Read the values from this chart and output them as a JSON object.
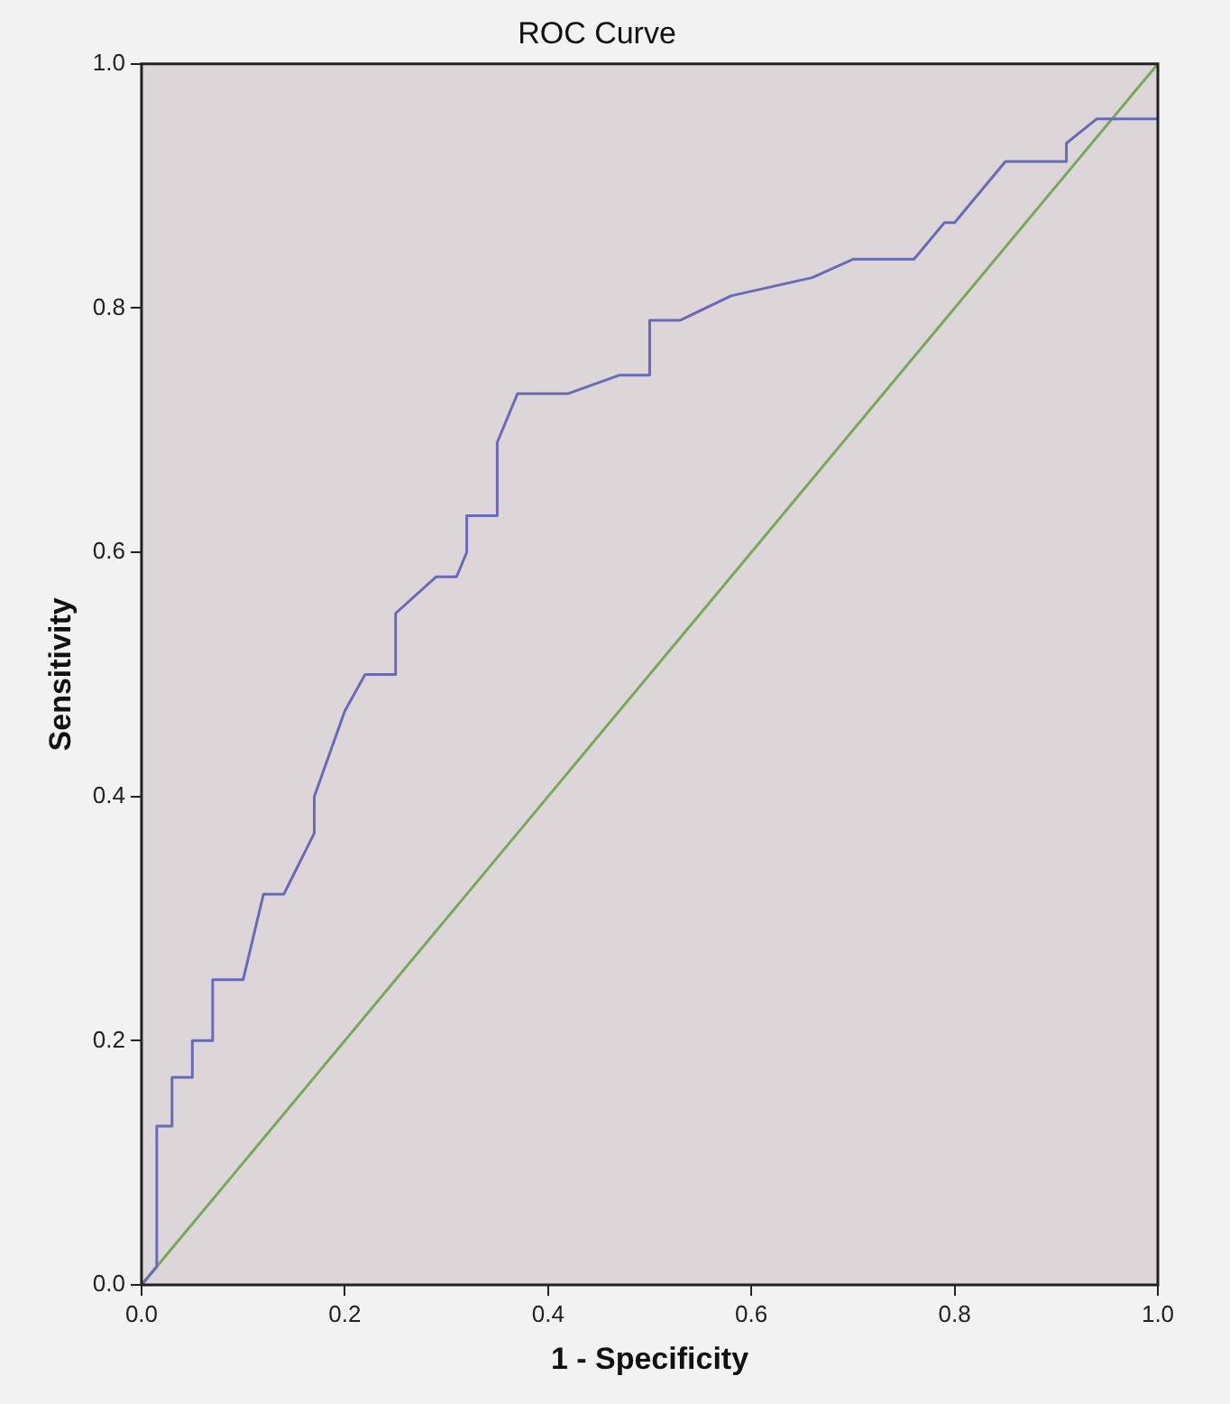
{
  "chart_data": {
    "type": "line",
    "title": "ROC Curve",
    "xlabel": "1 - Specificity",
    "ylabel": "Sensitivity",
    "marker": "none",
    "line_style": "solid",
    "grid": false,
    "legend": false,
    "xlim": [
      0,
      1
    ],
    "ylim": [
      0,
      1
    ],
    "xticks": [
      {
        "value": 0,
        "label": "0.0"
      },
      {
        "value": 0.2,
        "label": "0.2"
      },
      {
        "value": 0.4,
        "label": "0.4"
      },
      {
        "value": 0.6,
        "label": "0.6"
      },
      {
        "value": 0.8,
        "label": "0.8"
      },
      {
        "value": 1,
        "label": "1.0"
      }
    ],
    "yticks": [
      {
        "value": 0,
        "label": "0.0"
      },
      {
        "value": 0.2,
        "label": "0.2"
      },
      {
        "value": 0.4,
        "label": "0.4"
      },
      {
        "value": 0.6,
        "label": "0.6"
      },
      {
        "value": 0.8,
        "label": "0.8"
      },
      {
        "value": 1,
        "label": "1.0"
      }
    ],
    "series": [
      {
        "color": "#6a6ab8",
        "x": [
          0,
          0.015,
          0.015,
          0.03,
          0.03,
          0.05,
          0.05,
          0.07,
          0.07,
          0.1,
          0.12,
          0.14,
          0.17,
          0.17,
          0.2,
          0.22,
          0.25,
          0.25,
          0.29,
          0.31,
          0.32,
          0.32,
          0.35,
          0.35,
          0.37,
          0.42,
          0.47,
          0.5,
          0.5,
          0.53,
          0.58,
          0.66,
          0.7,
          0.76,
          0.79,
          0.8,
          0.85,
          0.91,
          0.91,
          0.94,
          1.0
        ],
        "values": [
          0,
          0.015,
          0.13,
          0.13,
          0.17,
          0.17,
          0.2,
          0.2,
          0.25,
          0.25,
          0.32,
          0.32,
          0.37,
          0.4,
          0.47,
          0.5,
          0.5,
          0.55,
          0.58,
          0.58,
          0.6,
          0.63,
          0.63,
          0.69,
          0.73,
          0.73,
          0.745,
          0.745,
          0.79,
          0.79,
          0.81,
          0.825,
          0.84,
          0.84,
          0.87,
          0.87,
          0.92,
          0.92,
          0.935,
          0.955,
          0.955
        ]
      },
      {
        "color": "#7aa85a",
        "x": [
          0,
          1
        ],
        "values": [
          0,
          1
        ]
      }
    ]
  }
}
